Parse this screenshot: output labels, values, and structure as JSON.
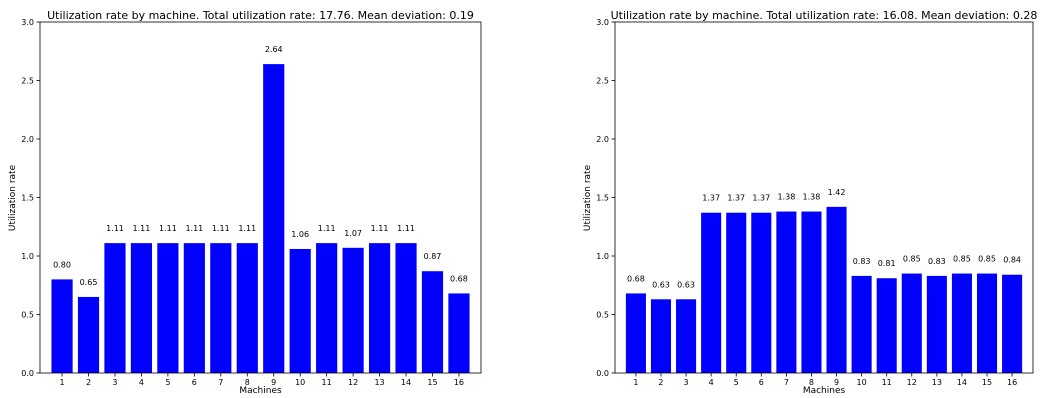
{
  "chart_data": [
    {
      "type": "bar",
      "title": "Utilization rate by machine. Total utilization rate: 17.76. Mean deviation: 0.19",
      "xlabel": "Machines",
      "ylabel": "Utilization rate",
      "ylim": [
        0,
        3.0
      ],
      "yticks": [
        "0.0",
        "0.5",
        "1.0",
        "1.5",
        "2.0",
        "2.5",
        "3.0"
      ],
      "categories": [
        "1",
        "2",
        "3",
        "4",
        "5",
        "6",
        "7",
        "8",
        "9",
        "10",
        "11",
        "12",
        "13",
        "14",
        "15",
        "16"
      ],
      "values": [
        0.8,
        0.65,
        1.11,
        1.11,
        1.11,
        1.11,
        1.11,
        1.11,
        2.64,
        1.06,
        1.11,
        1.07,
        1.11,
        1.11,
        0.87,
        0.68
      ],
      "value_labels": [
        "0.80",
        "0.65",
        "1.11",
        "1.11",
        "1.11",
        "1.11",
        "1.11",
        "1.11",
        "2.64",
        "1.06",
        "1.11",
        "1.07",
        "1.11",
        "1.11",
        "0.87",
        "0.68"
      ],
      "bar_color": "#0000ff",
      "grid": false
    },
    {
      "type": "bar",
      "title": "Utilization rate by machine. Total utilization rate: 16.08. Mean deviation: 0.28",
      "xlabel": "Machines",
      "ylabel": "Utilization rate",
      "ylim": [
        0,
        3.0
      ],
      "yticks": [
        "0.0",
        "0.5",
        "1.0",
        "1.5",
        "2.0",
        "2.5",
        "3.0"
      ],
      "categories": [
        "1",
        "2",
        "3",
        "4",
        "5",
        "6",
        "7",
        "8",
        "9",
        "10",
        "11",
        "12",
        "13",
        "14",
        "15",
        "16"
      ],
      "values": [
        0.68,
        0.63,
        0.63,
        1.37,
        1.37,
        1.37,
        1.38,
        1.38,
        1.42,
        0.83,
        0.81,
        0.85,
        0.83,
        0.85,
        0.85,
        0.84
      ],
      "value_labels": [
        "0.68",
        "0.63",
        "0.63",
        "1.37",
        "1.37",
        "1.37",
        "1.38",
        "1.38",
        "1.42",
        "0.83",
        "0.81",
        "0.85",
        "0.83",
        "0.85",
        "0.85",
        "0.84"
      ],
      "bar_color": "#0000ff",
      "grid": false
    }
  ]
}
